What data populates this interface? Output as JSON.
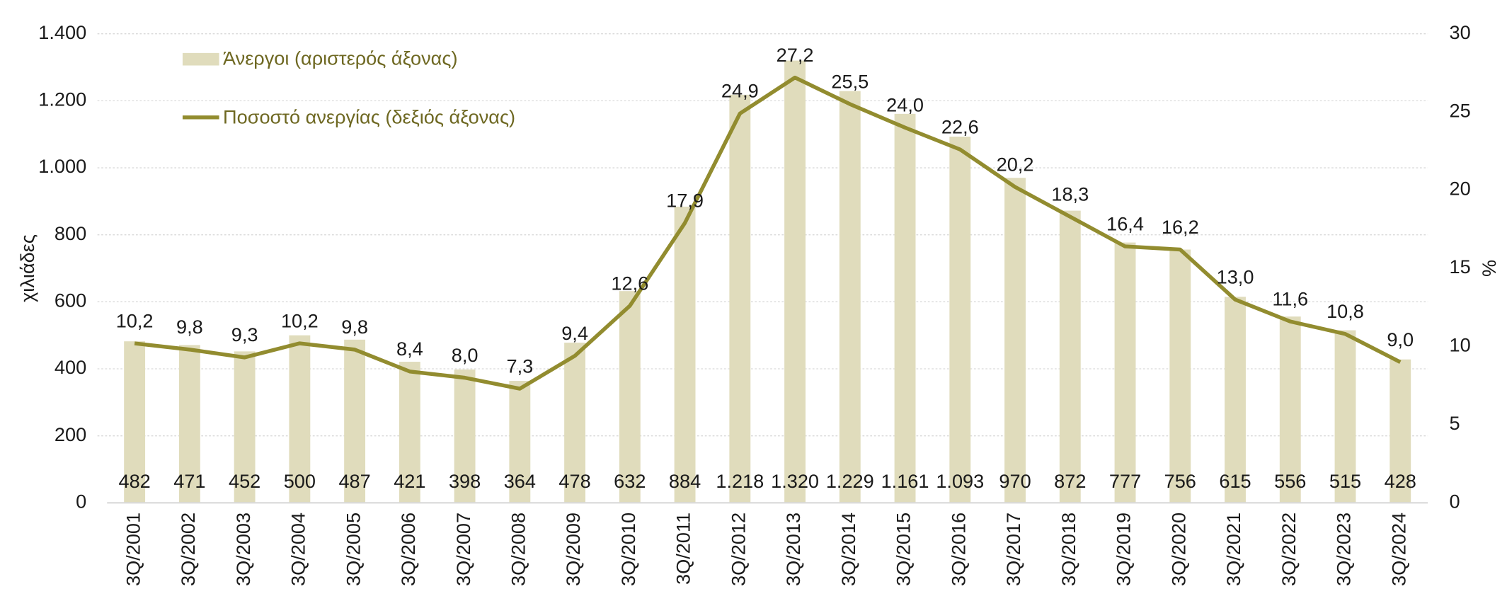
{
  "chart_data": {
    "type": "bar",
    "categories": [
      "3Q/2001",
      "3Q/2002",
      "3Q/2003",
      "3Q/2004",
      "3Q/2005",
      "3Q/2006",
      "3Q/2007",
      "3Q/2008",
      "3Q/2009",
      "3Q/2010",
      "3Q/2011",
      "3Q/2012",
      "3Q/2013",
      "3Q/2014",
      "3Q/2015",
      "3Q/2016",
      "3Q/2017",
      "3Q/2018",
      "3Q/2019",
      "3Q/2020",
      "3Q/2021",
      "3Q/2022",
      "3Q/2023",
      "3Q/2024"
    ],
    "series": [
      {
        "name": "Άνεργοι (αριστερός άξονας)",
        "type": "bar",
        "color": "#e0dcbc",
        "values": [
          482,
          471,
          452,
          500,
          487,
          421,
          398,
          364,
          478,
          632,
          884,
          1218,
          1320,
          1229,
          1161,
          1093,
          970,
          872,
          777,
          756,
          615,
          556,
          515,
          428
        ],
        "value_labels": [
          "482",
          "471",
          "452",
          "500",
          "487",
          "421",
          "398",
          "364",
          "478",
          "632",
          "884",
          "1.218",
          "1.320",
          "1.229",
          "1.161",
          "1.093",
          "970",
          "872",
          "777",
          "756",
          "615",
          "556",
          "515",
          "428"
        ]
      },
      {
        "name": "Ποσοστό ανεργίας (δεξιός άξονας)",
        "type": "line",
        "axis": "y2",
        "color": "#928c2f",
        "values": [
          10.2,
          9.8,
          9.3,
          10.2,
          9.8,
          8.4,
          8.0,
          7.3,
          9.4,
          12.6,
          17.9,
          24.9,
          27.2,
          25.5,
          24.0,
          22.6,
          20.2,
          18.3,
          16.4,
          16.2,
          13.0,
          11.6,
          10.8,
          9.0
        ],
        "value_labels": [
          "10,2",
          "9,8",
          "9,3",
          "10,2",
          "9,8",
          "8,4",
          "8,0",
          "7,3",
          "9,4",
          "12,6",
          "17,9",
          "24,9",
          "27,2",
          "25,5",
          "24,0",
          "22,6",
          "20,2",
          "18,3",
          "16,4",
          "16,2",
          "13,0",
          "11,6",
          "10,8",
          "9,0"
        ]
      }
    ],
    "ylabel": "χιλιάδες",
    "y2label": "%",
    "ylim": [
      0,
      1400
    ],
    "yticks": [
      0,
      200,
      400,
      600,
      800,
      {
        "value": 1000,
        "label": "1.000"
      },
      {
        "value": 1200,
        "label": "1.200"
      },
      {
        "value": 1400,
        "label": "1.400"
      }
    ],
    "y2lim": [
      0,
      30
    ],
    "y2ticks": [
      0,
      5,
      10,
      15,
      20,
      25,
      30
    ],
    "grid": true,
    "legend": "top-left"
  }
}
